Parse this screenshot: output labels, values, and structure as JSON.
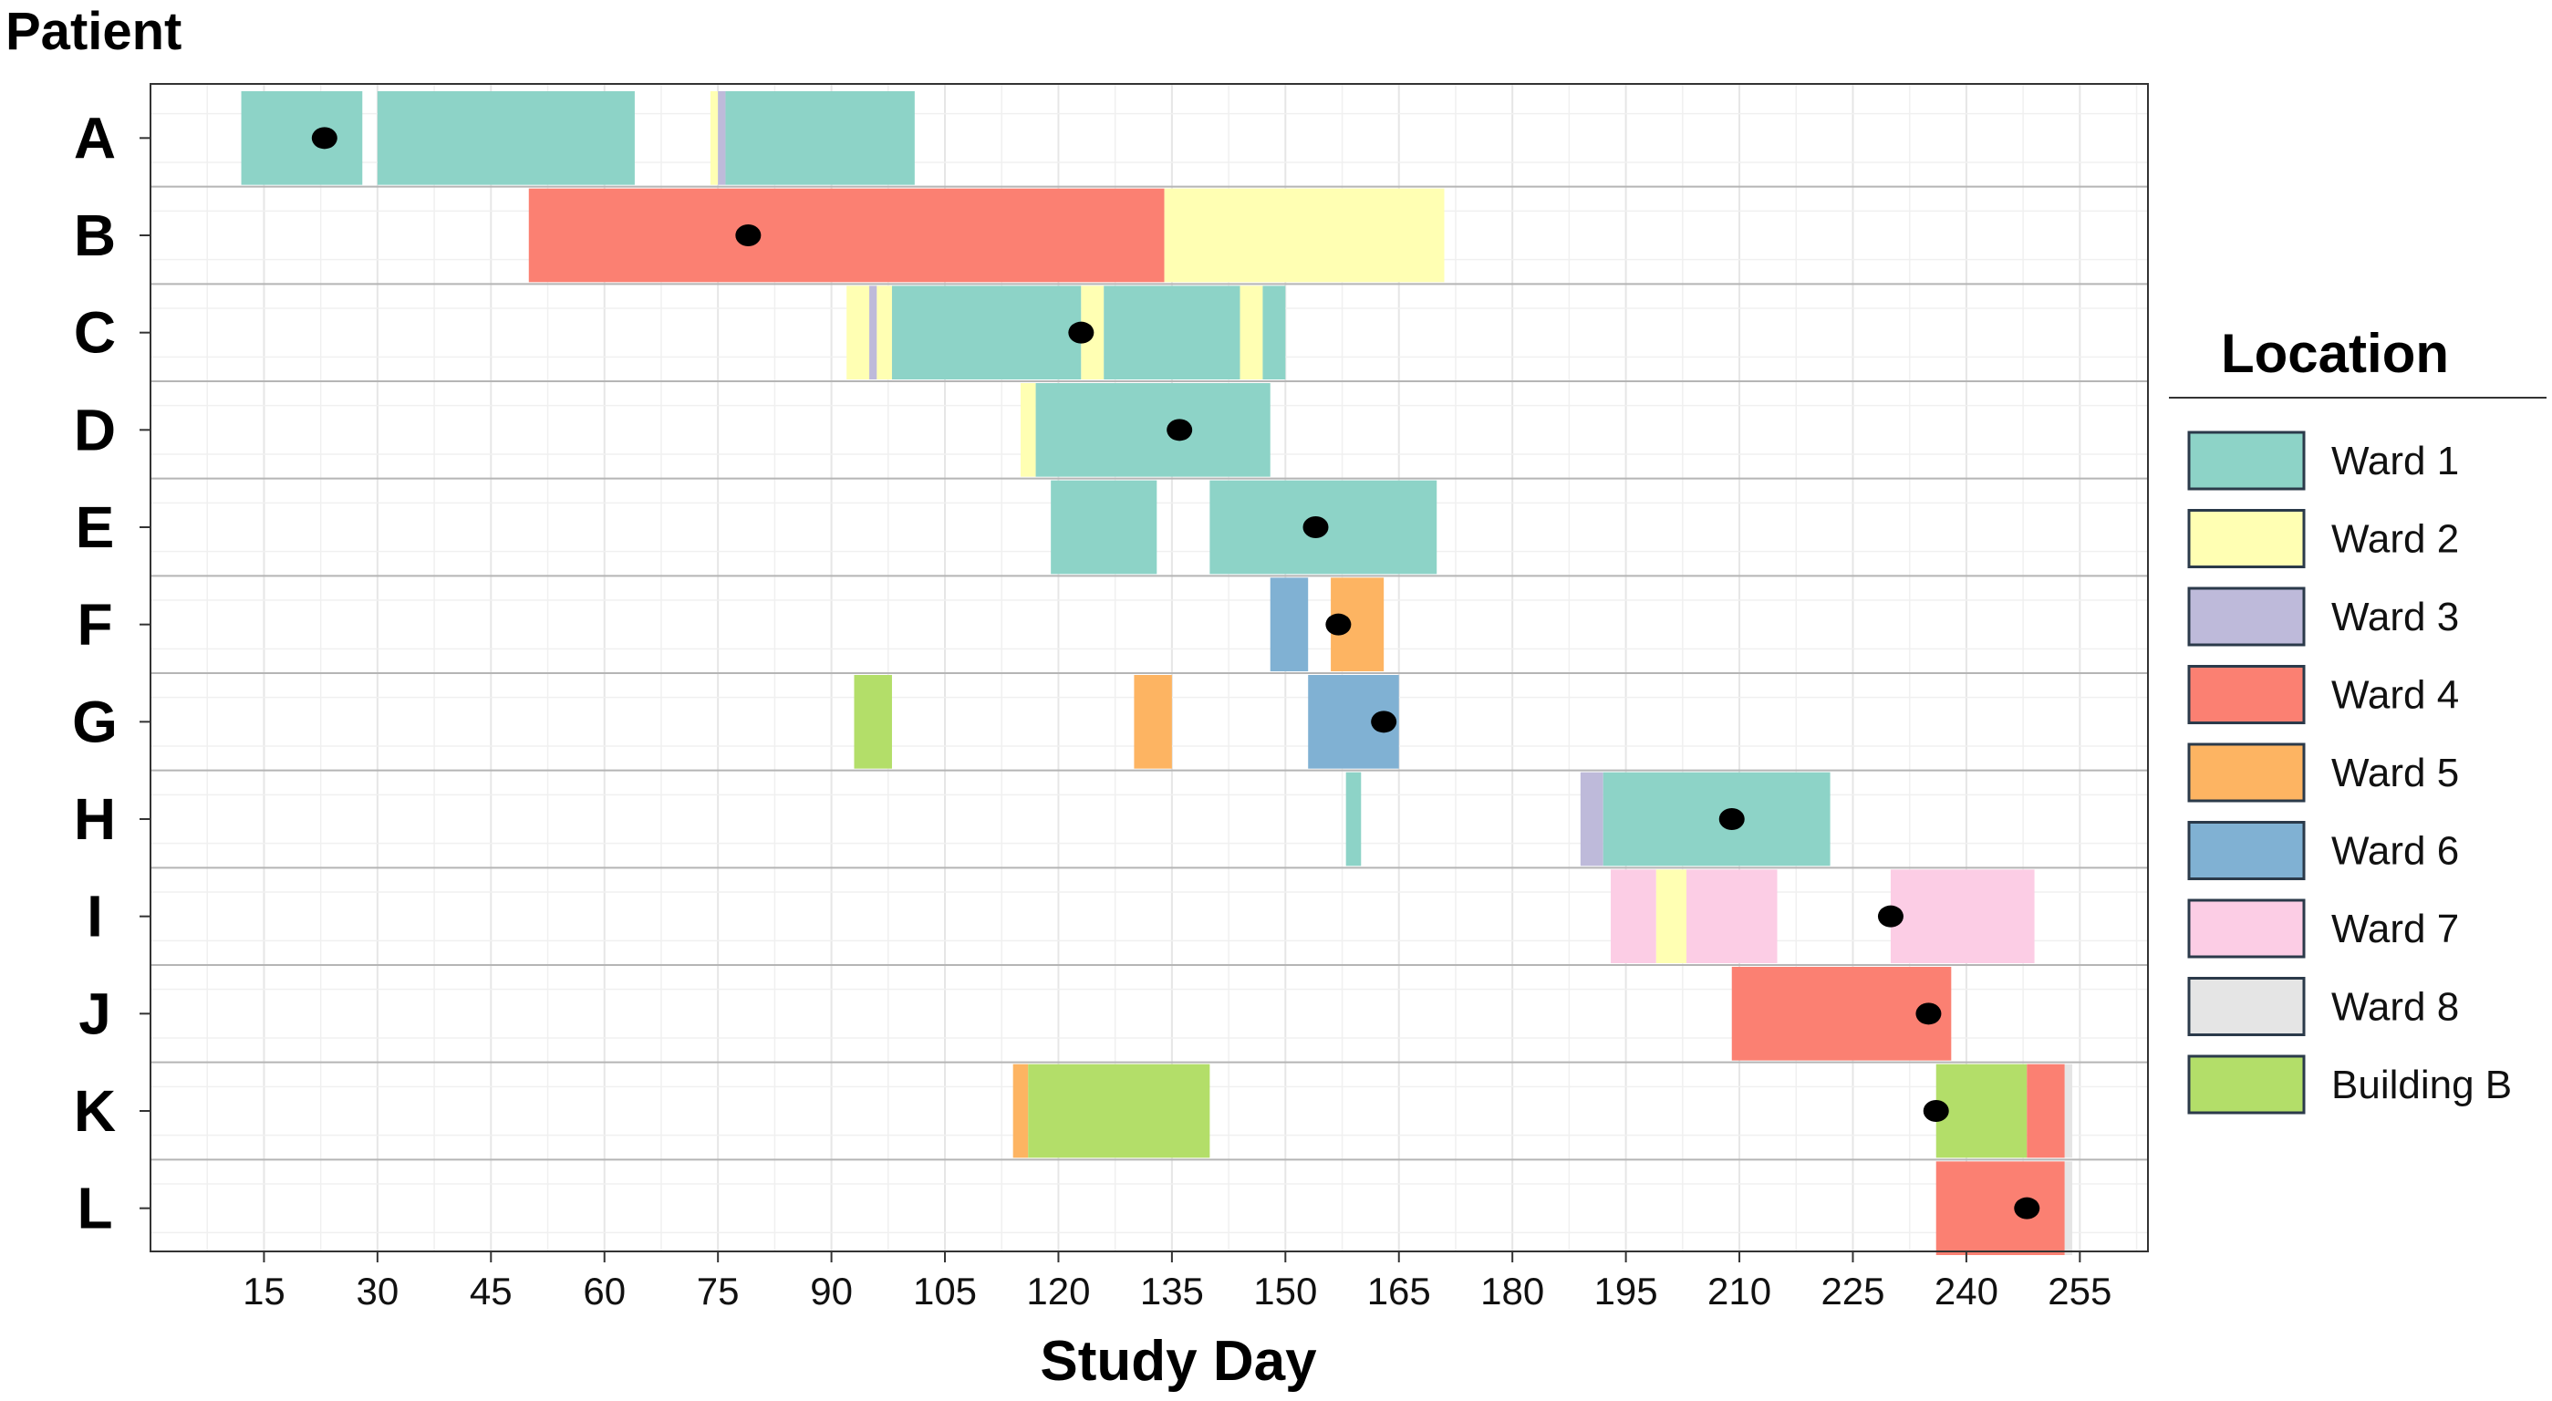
{
  "chart_data": {
    "type": "gantt",
    "ylabel": "Patient",
    "xlabel": "Study Day",
    "xlim": [
      0,
      264
    ],
    "xticks": [
      15,
      30,
      45,
      60,
      75,
      90,
      105,
      120,
      135,
      150,
      165,
      180,
      195,
      210,
      225,
      240,
      255
    ],
    "patients": [
      "A",
      "B",
      "C",
      "D",
      "E",
      "F",
      "G",
      "H",
      "I",
      "J",
      "K",
      "L"
    ],
    "legend": {
      "title": "Location",
      "position": "right",
      "items": [
        {
          "label": "Ward 1",
          "color": "#8dd3c7"
        },
        {
          "label": "Ward 2",
          "color": "#ffffb3"
        },
        {
          "label": "Ward 3",
          "color": "#bebada"
        },
        {
          "label": "Ward 4",
          "color": "#fb8072"
        },
        {
          "label": "Ward 5",
          "color": "#fdb462"
        },
        {
          "label": "Ward 6",
          "color": "#80b1d3"
        },
        {
          "label": "Ward 7",
          "color": "#fccde5"
        },
        {
          "label": "Ward 8",
          "color": "#e5e5e5"
        },
        {
          "label": "Building B",
          "color": "#b3de69"
        }
      ]
    },
    "stays": [
      {
        "patient": "A",
        "location": "Ward 1",
        "start": 12,
        "end": 28
      },
      {
        "patient": "A",
        "location": "Ward 1",
        "start": 30,
        "end": 64
      },
      {
        "patient": "A",
        "location": "Ward 2",
        "start": 74,
        "end": 75
      },
      {
        "patient": "A",
        "location": "Ward 3",
        "start": 75,
        "end": 76
      },
      {
        "patient": "A",
        "location": "Ward 1",
        "start": 76,
        "end": 101
      },
      {
        "patient": "B",
        "location": "Ward 4",
        "start": 50,
        "end": 134
      },
      {
        "patient": "B",
        "location": "Ward 2",
        "start": 134,
        "end": 171
      },
      {
        "patient": "C",
        "location": "Ward 2",
        "start": 92,
        "end": 95
      },
      {
        "patient": "C",
        "location": "Ward 3",
        "start": 95,
        "end": 96
      },
      {
        "patient": "C",
        "location": "Ward 2",
        "start": 96,
        "end": 98
      },
      {
        "patient": "C",
        "location": "Ward 1",
        "start": 98,
        "end": 123
      },
      {
        "patient": "C",
        "location": "Ward 2",
        "start": 123,
        "end": 126
      },
      {
        "patient": "C",
        "location": "Ward 1",
        "start": 126,
        "end": 144
      },
      {
        "patient": "C",
        "location": "Ward 2",
        "start": 144,
        "end": 147
      },
      {
        "patient": "C",
        "location": "Ward 1",
        "start": 147,
        "end": 150
      },
      {
        "patient": "D",
        "location": "Ward 2",
        "start": 115,
        "end": 117
      },
      {
        "patient": "D",
        "location": "Ward 1",
        "start": 117,
        "end": 148
      },
      {
        "patient": "E",
        "location": "Ward 1",
        "start": 119,
        "end": 133
      },
      {
        "patient": "E",
        "location": "Ward 1",
        "start": 140,
        "end": 170
      },
      {
        "patient": "F",
        "location": "Ward 6",
        "start": 148,
        "end": 153
      },
      {
        "patient": "F",
        "location": "Ward 5",
        "start": 156,
        "end": 163
      },
      {
        "patient": "G",
        "location": "Building B",
        "start": 93,
        "end": 98
      },
      {
        "patient": "G",
        "location": "Ward 5",
        "start": 130,
        "end": 135
      },
      {
        "patient": "G",
        "location": "Ward 6",
        "start": 153,
        "end": 165
      },
      {
        "patient": "H",
        "location": "Ward 1",
        "start": 158,
        "end": 160
      },
      {
        "patient": "H",
        "location": "Ward 3",
        "start": 189,
        "end": 192
      },
      {
        "patient": "H",
        "location": "Ward 1",
        "start": 192,
        "end": 222
      },
      {
        "patient": "I",
        "location": "Ward 7",
        "start": 193,
        "end": 199
      },
      {
        "patient": "I",
        "location": "Ward 2",
        "start": 199,
        "end": 203
      },
      {
        "patient": "I",
        "location": "Ward 7",
        "start": 203,
        "end": 215
      },
      {
        "patient": "I",
        "location": "Ward 7",
        "start": 230,
        "end": 249
      },
      {
        "patient": "J",
        "location": "Ward 4",
        "start": 209,
        "end": 238
      },
      {
        "patient": "K",
        "location": "Ward 5",
        "start": 114,
        "end": 116
      },
      {
        "patient": "K",
        "location": "Building B",
        "start": 116,
        "end": 140
      },
      {
        "patient": "K",
        "location": "Building B",
        "start": 236,
        "end": 248
      },
      {
        "patient": "K",
        "location": "Ward 4",
        "start": 248,
        "end": 253
      },
      {
        "patient": "K",
        "location": "Ward 8",
        "start": 253,
        "end": 254
      },
      {
        "patient": "L",
        "location": "Ward 4",
        "start": 236,
        "end": 253
      },
      {
        "patient": "L",
        "location": "Ward 8",
        "start": 253,
        "end": 254
      }
    ],
    "events": [
      {
        "patient": "A",
        "day": 23
      },
      {
        "patient": "B",
        "day": 79
      },
      {
        "patient": "C",
        "day": 123
      },
      {
        "patient": "D",
        "day": 136
      },
      {
        "patient": "E",
        "day": 154
      },
      {
        "patient": "F",
        "day": 157
      },
      {
        "patient": "G",
        "day": 163
      },
      {
        "patient": "H",
        "day": 209
      },
      {
        "patient": "I",
        "day": 230
      },
      {
        "patient": "J",
        "day": 235
      },
      {
        "patient": "K",
        "day": 236
      },
      {
        "patient": "L",
        "day": 248
      }
    ]
  }
}
